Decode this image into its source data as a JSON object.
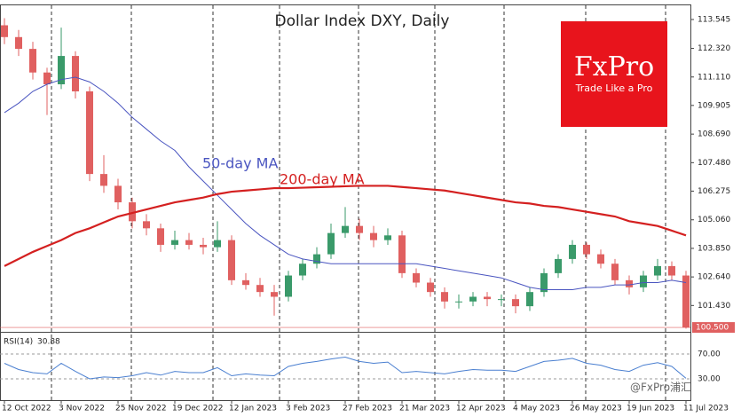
{
  "chart_data": {
    "type": "candlestick",
    "title": "Dollar Index DXY, Daily",
    "categories": [
      "12 Oct 2022",
      null,
      null,
      null,
      "3 Nov 2022",
      null,
      null,
      null,
      "25 Nov 2022",
      null,
      null,
      null,
      "19 Dec 2022",
      null,
      null,
      null,
      "12 Jan 2023",
      null,
      null,
      null,
      "3 Feb 2023",
      null,
      null,
      null,
      "27 Feb 2023",
      null,
      null,
      null,
      "21 Mar 2023",
      null,
      null,
      null,
      "12 Apr 2023",
      null,
      null,
      null,
      "4 May 2023",
      null,
      null,
      null,
      "26 May 2023",
      null,
      null,
      null,
      "19 Jun 2023",
      null,
      null,
      null,
      "11 Jul 2023"
    ],
    "open": [
      113.3,
      112.8,
      112.3,
      111.3,
      110.8,
      112.0,
      110.5,
      107.0,
      106.5,
      105.8,
      105.0,
      104.7,
      104.0,
      104.2,
      104.0,
      103.9,
      104.2,
      102.5,
      102.3,
      102.0,
      101.8,
      102.7,
      103.2,
      103.6,
      104.5,
      104.8,
      104.5,
      104.2,
      104.4,
      102.8,
      102.4,
      102.0,
      101.6,
      101.6,
      101.8,
      101.7,
      101.7,
      101.4,
      102.0,
      102.8,
      103.4,
      104.0,
      103.6,
      103.2,
      102.5,
      102.2,
      102.7,
      103.1,
      102.7
    ],
    "high": [
      113.6,
      113.1,
      112.6,
      111.5,
      113.2,
      112.2,
      110.7,
      107.8,
      106.8,
      106.0,
      105.3,
      104.9,
      104.6,
      104.5,
      104.3,
      105.0,
      104.4,
      102.8,
      102.6,
      102.3,
      102.9,
      103.4,
      103.9,
      104.9,
      105.6,
      105.1,
      104.8,
      104.7,
      104.6,
      103.0,
      102.6,
      102.2,
      101.9,
      102.0,
      102.0,
      101.9,
      101.9,
      102.2,
      103.0,
      103.6,
      104.2,
      104.1,
      103.8,
      103.4,
      102.7,
      102.9,
      103.4,
      103.3,
      102.9
    ],
    "low": [
      112.5,
      112.0,
      111.0,
      109.5,
      110.6,
      110.2,
      106.7,
      106.2,
      105.5,
      104.7,
      104.4,
      103.7,
      103.8,
      103.8,
      103.6,
      103.7,
      102.3,
      102.1,
      101.8,
      101.0,
      101.6,
      102.5,
      103.0,
      103.4,
      104.3,
      104.2,
      103.9,
      104.0,
      102.6,
      102.2,
      101.8,
      101.3,
      101.3,
      101.4,
      101.4,
      101.4,
      101.1,
      101.2,
      101.8,
      102.6,
      103.2,
      103.4,
      103.0,
      102.3,
      101.9,
      102.0,
      102.5,
      102.5,
      100.45
    ],
    "close": [
      112.8,
      112.3,
      111.3,
      110.8,
      112.0,
      110.5,
      107.0,
      106.5,
      105.8,
      105.0,
      104.7,
      104.0,
      104.2,
      104.0,
      103.9,
      104.2,
      102.5,
      102.3,
      102.0,
      101.8,
      102.7,
      103.2,
      103.6,
      104.5,
      104.8,
      104.5,
      104.2,
      104.4,
      102.8,
      102.4,
      102.0,
      101.6,
      101.6,
      101.8,
      101.7,
      101.7,
      101.4,
      102.0,
      102.8,
      103.4,
      104.0,
      103.6,
      103.2,
      102.5,
      102.2,
      102.7,
      103.1,
      102.7,
      100.5
    ],
    "up_color": "#3a9a6a",
    "down_color": "#e06060",
    "series": [
      {
        "name": "50-day MA",
        "color": "#4a55c0",
        "values": [
          109.6,
          110.0,
          110.5,
          110.8,
          111.0,
          111.1,
          110.9,
          110.5,
          110.0,
          109.4,
          108.9,
          108.4,
          108.0,
          107.3,
          106.7,
          106.1,
          105.5,
          104.9,
          104.4,
          104.0,
          103.6,
          103.4,
          103.3,
          103.2,
          103.2,
          103.2,
          103.2,
          103.2,
          103.2,
          103.2,
          103.1,
          103.0,
          102.9,
          102.8,
          102.7,
          102.6,
          102.4,
          102.2,
          102.1,
          102.1,
          102.1,
          102.2,
          102.2,
          102.3,
          102.3,
          102.4,
          102.4,
          102.5,
          102.4
        ]
      },
      {
        "name": "200-day MA",
        "color": "#d42020",
        "values": [
          103.1,
          103.4,
          103.7,
          103.95,
          104.2,
          104.5,
          104.7,
          104.95,
          105.2,
          105.35,
          105.5,
          105.65,
          105.8,
          105.9,
          106.0,
          106.15,
          106.25,
          106.3,
          106.35,
          106.4,
          106.4,
          106.42,
          106.44,
          106.46,
          106.48,
          106.5,
          106.5,
          106.5,
          106.45,
          106.4,
          106.35,
          106.3,
          106.2,
          106.1,
          106.0,
          105.9,
          105.8,
          105.75,
          105.65,
          105.6,
          105.5,
          105.4,
          105.3,
          105.2,
          105.0,
          104.9,
          104.8,
          104.6,
          104.4
        ]
      }
    ],
    "ylim": [
      100.39,
      114.07
    ],
    "yticks": [
      113.545,
      {
        "value": 112.32,
        "label": "112.320"
      },
      {
        "value": 111.11,
        "label": "111.110"
      },
      109.905,
      {
        "value": 108.69,
        "label": "108.690"
      },
      {
        "value": 107.48,
        "label": "107.480"
      },
      106.275,
      {
        "value": 105.06,
        "label": "105.060"
      },
      {
        "value": 103.85,
        "label": "103.850"
      },
      {
        "value": 102.64,
        "label": "102.640"
      },
      {
        "value": 101.43,
        "label": "101.430"
      }
    ],
    "price_tag": {
      "value": 100.5,
      "label": "100.500"
    },
    "rsi": {
      "label": "RSI(14)",
      "color": "#4a7fd0",
      "ylim": [
        0,
        100
      ],
      "yticks": [
        {
          "value": 70,
          "label": "70.00"
        },
        {
          "value": 30,
          "label": "30.00"
        }
      ],
      "values": [
        55,
        45,
        40,
        38,
        55,
        42,
        30,
        33,
        32,
        35,
        40,
        36,
        42,
        40,
        40,
        48,
        35,
        38,
        36,
        35,
        50,
        55,
        58,
        62,
        65,
        58,
        55,
        57,
        40,
        42,
        40,
        38,
        42,
        45,
        44,
        44,
        42,
        50,
        58,
        60,
        63,
        55,
        52,
        45,
        42,
        52,
        56,
        50,
        30.88
      ]
    },
    "logo": {
      "brand": "FxPro",
      "tagline": "Trade Like a Pro"
    },
    "watermark": "@FxPro浦汇"
  }
}
